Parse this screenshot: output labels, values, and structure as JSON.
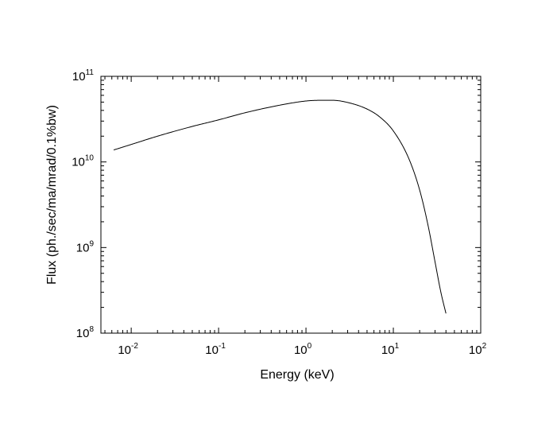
{
  "chart_data": {
    "type": "line",
    "title": "",
    "xlabel": "Energy (keV)",
    "ylabel": "Flux (ph./sec/ma/mrad/0.1%bw)",
    "xscale": "log",
    "yscale": "log",
    "xlim": [
      0.0045,
      100
    ],
    "ylim": [
      100000000,
      100000000000
    ],
    "grid": false,
    "legend": "none",
    "line_color": "#000000",
    "x_ticks": [
      {
        "base": "10",
        "exp": "-2",
        "value": 0.01
      },
      {
        "base": "10",
        "exp": "-1",
        "value": 0.1
      },
      {
        "base": "10",
        "exp": "0",
        "value": 1
      },
      {
        "base": "10",
        "exp": "1",
        "value": 10
      },
      {
        "base": "10",
        "exp": "2",
        "value": 100
      }
    ],
    "y_ticks": [
      {
        "base": "10",
        "exp": "8",
        "value": 100000000
      },
      {
        "base": "10",
        "exp": "9",
        "value": 1000000000
      },
      {
        "base": "10",
        "exp": "10",
        "value": 10000000000
      },
      {
        "base": "10",
        "exp": "11",
        "value": 100000000000
      }
    ],
    "series": [
      {
        "x": [
          0.0063,
          0.01,
          0.02,
          0.05,
          0.1,
          0.2,
          0.5,
          1.0,
          1.5,
          2.0,
          3.0,
          5.0,
          7.0,
          10.0,
          15.0,
          20.0,
          25.0,
          30.0,
          35.0,
          40.0
        ],
        "y": [
          13800000000,
          16000000000,
          20000000000,
          26000000000,
          31000000000,
          37500000000,
          46000000000,
          51500000000,
          52500000000,
          52500000000,
          49500000000,
          41500000000,
          33500000000,
          23000000000,
          11000000000,
          4700000000,
          1800000000,
          680000000,
          300000000,
          170000000
        ]
      }
    ]
  }
}
